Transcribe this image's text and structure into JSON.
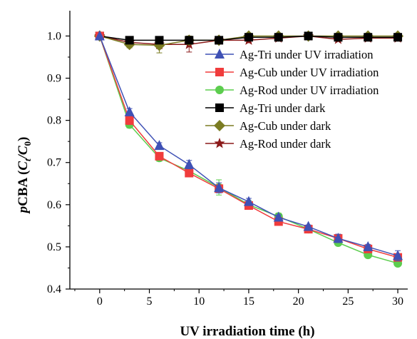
{
  "chart_data": {
    "type": "line",
    "xlabel": "UV irradiation time (h)",
    "ylabel": {
      "prefix": "p",
      "main": "CBA (",
      "num": "C",
      "num_sub": "t",
      "slash": "/",
      "den": "C",
      "den_sub": "0",
      "close": ")"
    },
    "xlim": [
      -3,
      31
    ],
    "ylim": [
      0.4,
      1.06
    ],
    "xticks": [
      0,
      5,
      10,
      15,
      20,
      25,
      30
    ],
    "yticks": [
      0.4,
      0.5,
      0.6,
      0.7,
      0.8,
      0.9,
      1.0
    ],
    "ytick_labels": [
      "0.4",
      "0.5",
      "0.6",
      "0.7",
      "0.8",
      "0.9",
      "1.0"
    ],
    "grid": false,
    "legend_position": "right",
    "series": [
      {
        "name": "Ag-Tri under UV irradiation",
        "color": "#3f51b5",
        "marker": "triangle",
        "x": [
          0,
          3,
          6,
          9,
          12,
          15,
          18,
          21,
          24,
          27,
          30
        ],
        "y": [
          1.0,
          0.82,
          0.74,
          0.695,
          0.64,
          0.607,
          0.57,
          0.548,
          0.52,
          0.5,
          0.479
        ],
        "err": [
          0,
          0.008,
          0.007,
          0.01,
          0.012,
          0.008,
          0.006,
          0.004,
          0.01,
          0.006,
          0.012
        ]
      },
      {
        "name": "Ag-Cub under UV irradiation",
        "color": "#f03c3c",
        "marker": "square",
        "x": [
          0,
          3,
          6,
          9,
          12,
          15,
          18,
          21,
          24,
          27,
          30
        ],
        "y": [
          1.0,
          0.8,
          0.715,
          0.675,
          0.638,
          0.598,
          0.56,
          0.542,
          0.52,
          0.495,
          0.475
        ],
        "err": [
          0,
          0.01,
          0.008,
          0.006,
          0.008,
          0.006,
          0.006,
          0.006,
          0.01,
          0.008,
          0.008
        ]
      },
      {
        "name": "Ag-Rod under UV irradiation",
        "color": "#5ccd4e",
        "marker": "circle",
        "x": [
          0,
          3,
          6,
          9,
          12,
          15,
          18,
          21,
          24,
          27,
          30
        ],
        "y": [
          1.0,
          0.79,
          0.711,
          0.68,
          0.641,
          0.6,
          0.572,
          0.542,
          0.51,
          0.481,
          0.461
        ],
        "err": [
          0,
          0.008,
          0.008,
          0.008,
          0.018,
          0.01,
          0.008,
          0.006,
          0.006,
          0.006,
          0.006
        ]
      },
      {
        "name": "Ag-Tri under dark",
        "color": "#000000",
        "marker": "square",
        "x": [
          0,
          3,
          6,
          9,
          12,
          15,
          18,
          21,
          24,
          27,
          30
        ],
        "y": [
          1.0,
          0.99,
          0.99,
          0.99,
          0.99,
          0.997,
          0.997,
          1.0,
          0.997,
          0.997,
          0.997
        ],
        "err": [
          0,
          0,
          0,
          0,
          0,
          0,
          0,
          0,
          0,
          0,
          0
        ]
      },
      {
        "name": "Ag-Cub under dark",
        "color": "#7b7c22",
        "marker": "diamond",
        "x": [
          0,
          3,
          6,
          9,
          12,
          15,
          18,
          21,
          24,
          27,
          30
        ],
        "y": [
          1.0,
          0.98,
          0.978,
          0.99,
          0.99,
          1.0,
          1.0,
          1.0,
          1.0,
          1.0,
          1.0
        ],
        "err": [
          0,
          0.008,
          0.018,
          0.01,
          0.006,
          0.006,
          0.006,
          0.004,
          0.004,
          0.004,
          0.004
        ]
      },
      {
        "name": "Ag-Rod under dark",
        "color": "#8b1a1a",
        "marker": "star",
        "x": [
          0,
          3,
          6,
          9,
          12,
          15,
          18,
          21,
          24,
          27,
          30
        ],
        "y": [
          1.0,
          0.985,
          0.98,
          0.98,
          0.99,
          0.99,
          0.995,
          1.0,
          0.992,
          0.995,
          0.995
        ],
        "err": [
          0,
          0,
          0.01,
          0.018,
          0.006,
          0.006,
          0.006,
          0.004,
          0.004,
          0.004,
          0.004
        ]
      }
    ]
  }
}
